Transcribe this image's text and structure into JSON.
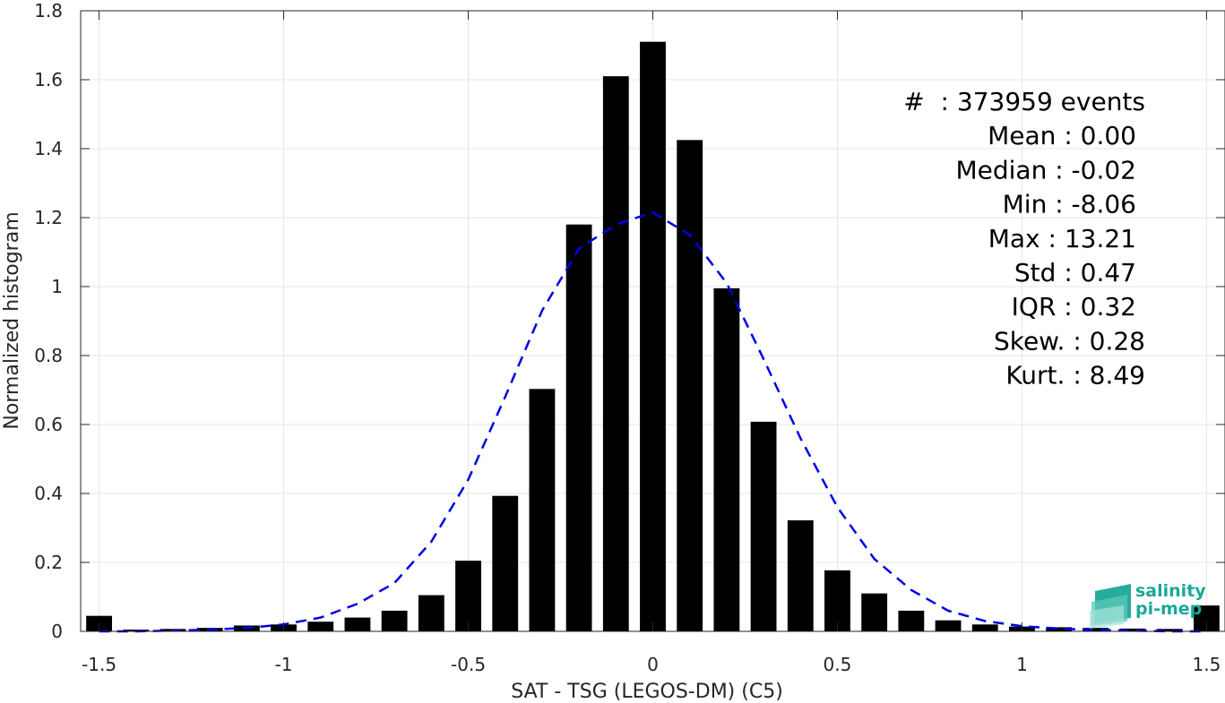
{
  "chart_data": {
    "type": "bar",
    "xlabel": "SAT - TSG (LEGOS-DM) (C5)",
    "ylabel": "Normalized histogram",
    "xlim": [
      -1.55,
      1.55
    ],
    "ylim": [
      0,
      1.8
    ],
    "xticks": [
      -1.5,
      -1,
      -0.5,
      0,
      0.5,
      1,
      1.5
    ],
    "xtick_labels": [
      "-1.5",
      "-1",
      "-0.5",
      "0",
      "0.5",
      "1",
      "1.5"
    ],
    "yticks": [
      0,
      0.2,
      0.4,
      0.6,
      0.8,
      1,
      1.2,
      1.4,
      1.6,
      1.8
    ],
    "ytick_labels": [
      "0",
      "0.2",
      "0.4",
      "0.6",
      "0.8",
      "1",
      "1.2",
      "1.4",
      "1.6",
      "1.8"
    ],
    "grid": true,
    "bar_width": 0.07,
    "bar_color": "#000000",
    "bins": [
      -1.5,
      -1.4,
      -1.3,
      -1.2,
      -1.1,
      -1.0,
      -0.9,
      -0.8,
      -0.7,
      -0.6,
      -0.5,
      -0.4,
      -0.3,
      -0.2,
      -0.1,
      0.0,
      0.1,
      0.2,
      0.3,
      0.4,
      0.5,
      0.6,
      0.7,
      0.8,
      0.9,
      1.0,
      1.1,
      1.2,
      1.3,
      1.4,
      1.5
    ],
    "values": [
      0.045,
      0.005,
      0.007,
      0.01,
      0.017,
      0.02,
      0.028,
      0.04,
      0.06,
      0.105,
      0.205,
      0.393,
      0.703,
      1.18,
      1.61,
      1.71,
      1.425,
      0.995,
      0.608,
      0.322,
      0.177,
      0.11,
      0.06,
      0.032,
      0.02,
      0.014,
      0.012,
      0.01,
      0.008,
      0.007,
      0.075
    ],
    "fit": {
      "style": "dashed",
      "color": "#0000e6",
      "x": [
        -1.5,
        -1.4,
        -1.3,
        -1.2,
        -1.1,
        -1.0,
        -0.9,
        -0.8,
        -0.7,
        -0.6,
        -0.5,
        -0.4,
        -0.3,
        -0.2,
        -0.1,
        0.0,
        0.1,
        0.2,
        0.3,
        0.4,
        0.5,
        0.6,
        0.7,
        0.8,
        0.9,
        1.0,
        1.1,
        1.2,
        1.3,
        1.4,
        1.5
      ],
      "y": [
        0.0,
        0.0,
        0.002,
        0.005,
        0.01,
        0.02,
        0.04,
        0.08,
        0.14,
        0.26,
        0.44,
        0.68,
        0.93,
        1.11,
        1.18,
        1.215,
        1.15,
        1.01,
        0.79,
        0.56,
        0.36,
        0.21,
        0.12,
        0.06,
        0.03,
        0.015,
        0.008,
        0.004,
        0.002,
        0.0,
        0.0
      ]
    },
    "annotations": [
      "#  : 373959 events",
      "Mean : 0.00",
      "Median : -0.02",
      "Min : -8.06",
      "Max : 13.21",
      "Std : 0.47",
      "IQR : 0.32",
      "Skew. : 0.28",
      "Kurt. : 8.49"
    ]
  },
  "logo": {
    "line1": "salinity",
    "line2": "pi-mep",
    "color": "#1aa898"
  }
}
